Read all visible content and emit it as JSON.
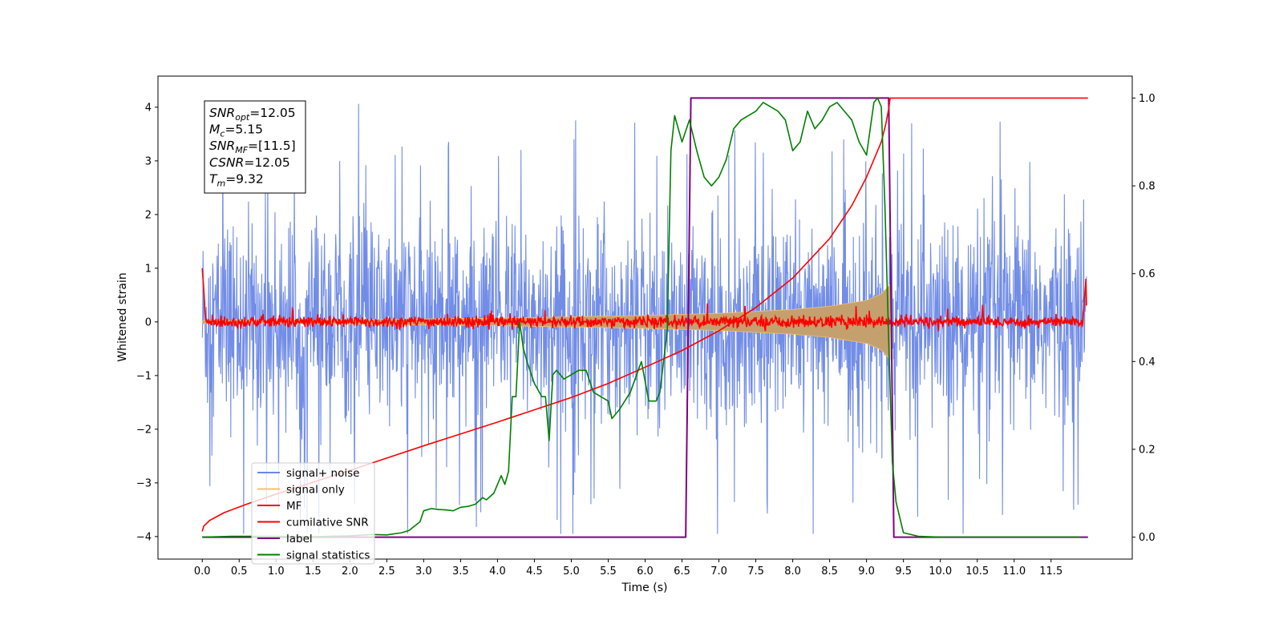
{
  "chart_data": {
    "type": "line",
    "xlabel": "Time (s)",
    "ylabel": "Whitened strain",
    "x_ticks": [
      "0.0",
      "0.5",
      "1.0",
      "1.5",
      "2.0",
      "2.5",
      "3.0",
      "3.5",
      "4.0",
      "4.5",
      "5.0",
      "5.5",
      "6.0",
      "6.5",
      "7.0",
      "7.5",
      "8.0",
      "8.5",
      "9.0",
      "9.5",
      "10.0",
      "10.5",
      "11.0",
      "11.5"
    ],
    "y_ticks_left": [
      "−4",
      "−3",
      "−2",
      "−1",
      "0",
      "1",
      "2",
      "3",
      "4"
    ],
    "y_ticks_right": [
      "0.0",
      "0.2",
      "0.4",
      "0.6",
      "0.8",
      "1.0"
    ],
    "xlim": [
      -0.6,
      12.6
    ],
    "ylim_left": [
      -4.42,
      4.58
    ],
    "ylim_right": [
      -0.05,
      1.05
    ],
    "legend_position": "lower-left",
    "annotation": {
      "lines": [
        {
          "main": "SNR",
          "sub": "opt",
          "value": "=12.05"
        },
        {
          "main": "M",
          "sub": "c",
          "value": "=5.15"
        },
        {
          "main": "SNR",
          "sub": "MF",
          "value": "=[11.5]"
        },
        {
          "main": "CSNR",
          "sub": "",
          "value": "=12.05"
        },
        {
          "main": "T",
          "sub": "m",
          "value": "=9.32"
        }
      ]
    },
    "series": [
      {
        "name": "signal+ noise",
        "color": "#6a87e6",
        "axis": "left",
        "kind": "noise",
        "t_start": 0.0,
        "t_end": 11.98,
        "amplitude_typical": 1.2,
        "peak_max": 4.15,
        "peak_min": -3.95
      },
      {
        "name": "signal only",
        "color": "#f5c06b",
        "axis": "left",
        "kind": "chirp",
        "t_start": 0.0,
        "t_end": 9.32,
        "envelope": {
          "x": [
            0.0,
            2.0,
            4.0,
            6.0,
            7.0,
            8.0,
            8.5,
            9.0,
            9.2,
            9.32
          ],
          "y": [
            0.02,
            0.04,
            0.07,
            0.12,
            0.16,
            0.23,
            0.29,
            0.4,
            0.52,
            0.7
          ]
        }
      },
      {
        "name": "MF",
        "color": "#ff0000",
        "axis": "left",
        "kind": "mf",
        "t_start": 0.0,
        "t_end": 11.98,
        "edge_start": 1.0,
        "edge_end": 0.95,
        "noise_amp": 0.1
      },
      {
        "name": "cumilative SNR",
        "color": "#ff0000",
        "axis": "right",
        "x": [
          0.0,
          0.02,
          0.1,
          0.3,
          0.6,
          1.0,
          1.5,
          2.0,
          2.5,
          3.0,
          3.5,
          4.0,
          4.5,
          5.0,
          5.5,
          6.0,
          6.5,
          7.0,
          7.5,
          8.0,
          8.5,
          8.8,
          9.0,
          9.1,
          9.2,
          9.26,
          9.3,
          9.32,
          12.0
        ],
        "y": [
          0.013,
          0.025,
          0.038,
          0.056,
          0.075,
          0.098,
          0.125,
          0.152,
          0.18,
          0.208,
          0.235,
          0.262,
          0.29,
          0.318,
          0.35,
          0.387,
          0.425,
          0.47,
          0.523,
          0.59,
          0.68,
          0.755,
          0.82,
          0.86,
          0.9,
          0.94,
          0.975,
          1.0,
          1.0
        ]
      },
      {
        "name": "label",
        "color": "#800080",
        "axis": "right",
        "x": [
          0.0,
          6.55,
          6.62,
          9.3,
          9.37,
          12.0
        ],
        "y": [
          0.0,
          0.0,
          1.0,
          1.0,
          0.0,
          0.0
        ]
      },
      {
        "name": "signal statistics",
        "color": "#008000",
        "axis": "right",
        "x": [
          0.0,
          0.4,
          1.0,
          1.5,
          2.0,
          2.3,
          2.5,
          2.7,
          2.8,
          2.95,
          3.0,
          3.1,
          3.2,
          3.3,
          3.4,
          3.5,
          3.6,
          3.7,
          3.8,
          3.85,
          3.95,
          4.05,
          4.1,
          4.15,
          4.2,
          4.25,
          4.3,
          4.35,
          4.4,
          4.5,
          4.6,
          4.65,
          4.7,
          4.75,
          4.8,
          4.9,
          5.0,
          5.1,
          5.2,
          5.3,
          5.4,
          5.5,
          5.55,
          5.65,
          5.8,
          5.95,
          6.05,
          6.15,
          6.2,
          6.3,
          6.35,
          6.4,
          6.5,
          6.6,
          6.7,
          6.8,
          6.9,
          7.0,
          7.1,
          7.2,
          7.3,
          7.4,
          7.5,
          7.6,
          7.7,
          7.8,
          7.9,
          8.0,
          8.1,
          8.2,
          8.3,
          8.4,
          8.5,
          8.6,
          8.7,
          8.8,
          8.9,
          9.0,
          9.1,
          9.15,
          9.2,
          9.25,
          9.3,
          9.35,
          9.4,
          9.5,
          9.7,
          10.0,
          11.0,
          11.9
        ],
        "y": [
          0.0,
          0.002,
          0.002,
          0.001,
          0.003,
          0.006,
          0.005,
          0.01,
          0.015,
          0.035,
          0.06,
          0.065,
          0.063,
          0.062,
          0.06,
          0.068,
          0.07,
          0.075,
          0.09,
          0.085,
          0.1,
          0.14,
          0.12,
          0.15,
          0.32,
          0.32,
          0.49,
          0.43,
          0.4,
          0.35,
          0.32,
          0.32,
          0.22,
          0.37,
          0.38,
          0.36,
          0.37,
          0.38,
          0.38,
          0.33,
          0.32,
          0.31,
          0.27,
          0.29,
          0.33,
          0.4,
          0.31,
          0.31,
          0.33,
          0.47,
          0.88,
          0.96,
          0.9,
          0.95,
          0.88,
          0.82,
          0.8,
          0.82,
          0.86,
          0.93,
          0.95,
          0.96,
          0.97,
          0.99,
          0.98,
          0.97,
          0.95,
          0.88,
          0.9,
          0.97,
          0.93,
          0.95,
          0.98,
          0.99,
          0.97,
          0.95,
          0.9,
          0.87,
          0.99,
          1.0,
          0.98,
          0.75,
          0.45,
          0.17,
          0.08,
          0.01,
          0.002,
          0.0,
          0.0,
          0.0
        ]
      }
    ]
  }
}
